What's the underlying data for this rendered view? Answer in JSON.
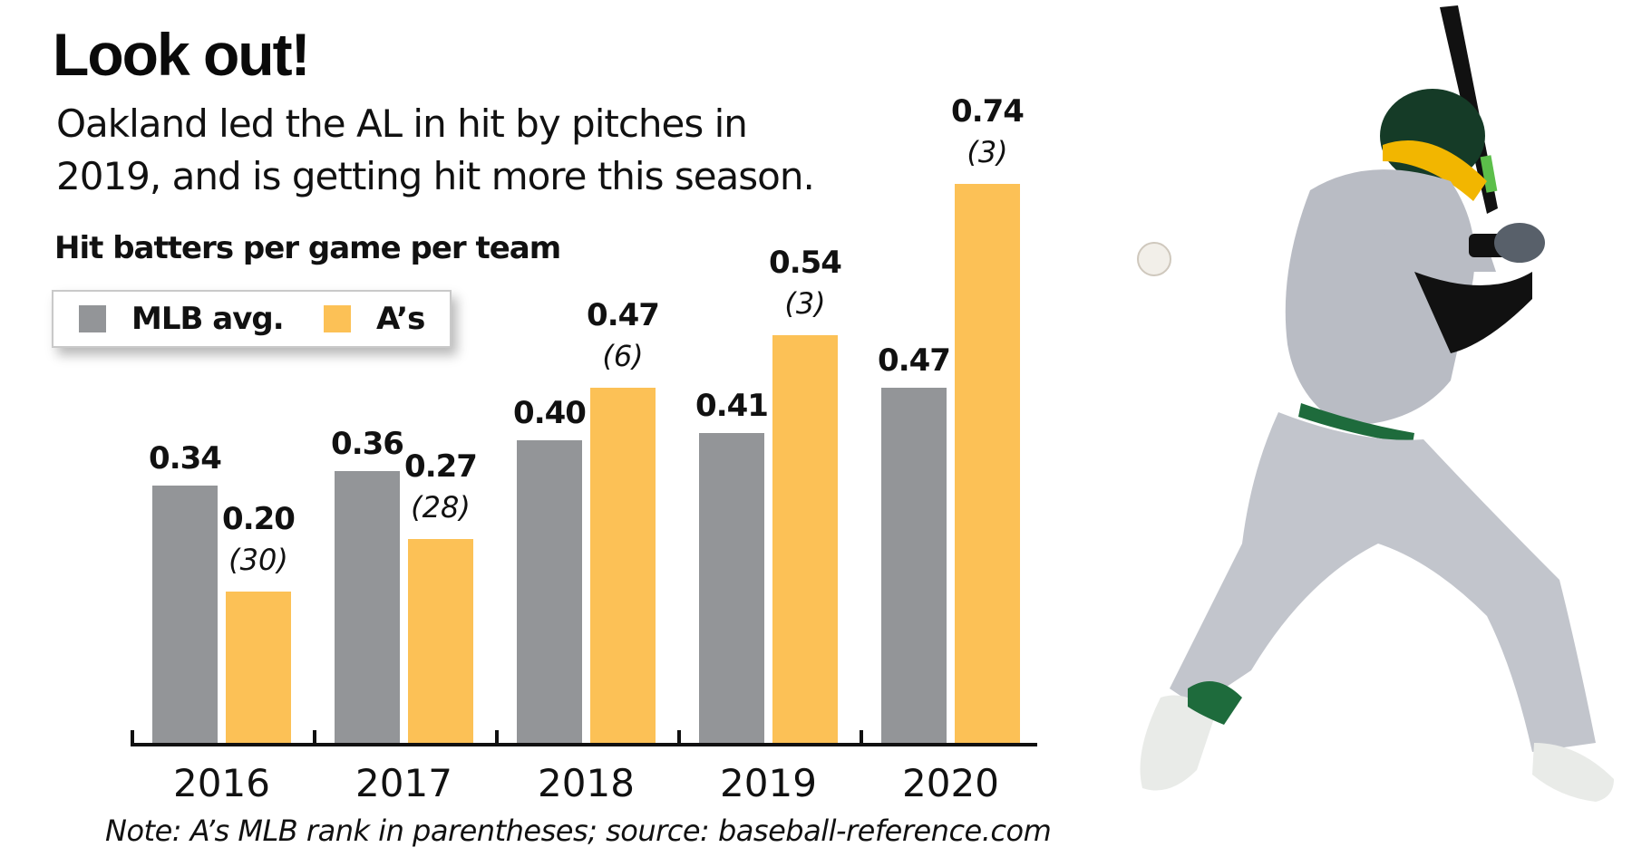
{
  "header": {
    "title": "Look out!",
    "subtitle_line1": "Oakland led the AL in hit by pitches in",
    "subtitle_line2": "2019, and is getting hit more this season."
  },
  "chart_label": "Hit batters per game  per team",
  "legend": [
    {
      "label": "MLB avg.",
      "color": "#939598"
    },
    {
      "label": "A’s",
      "color": "#fcc156"
    }
  ],
  "note": "Note: A’s MLB rank in parentheses; source: baseball-reference.com",
  "photo": {
    "icon": "baseball-player-photo",
    "ball_icon": "baseball-icon"
  },
  "chart_data": {
    "type": "bar",
    "title": "Look out!",
    "subtitle": "Oakland led the AL in hit by pitches in 2019, and is getting hit more this season.",
    "ylabel": "Hit batters per game  per team",
    "xlabel": "",
    "categories": [
      "2016",
      "2017",
      "2018",
      "2019",
      "2020"
    ],
    "series": [
      {
        "name": "MLB avg.",
        "color": "#939598",
        "values": [
          0.34,
          0.36,
          0.4,
          0.41,
          0.47
        ],
        "labels": [
          "0.34",
          "0.36",
          "0.40",
          "0.41",
          "0.47"
        ]
      },
      {
        "name": "A’s",
        "color": "#fcc156",
        "values": [
          0.2,
          0.27,
          0.47,
          0.54,
          0.74
        ],
        "labels": [
          "0.20",
          "0.27",
          "0.47",
          "0.54",
          "0.74"
        ],
        "ranks": [
          "(30)",
          "(28)",
          "(6)",
          "(3)",
          "(3)"
        ]
      }
    ],
    "annotations": [
      "A’s MLB rank in parentheses"
    ],
    "ylim": [
      0,
      0.8
    ],
    "grid": false,
    "legend_position": "top-left",
    "source": "baseball-reference.com"
  }
}
